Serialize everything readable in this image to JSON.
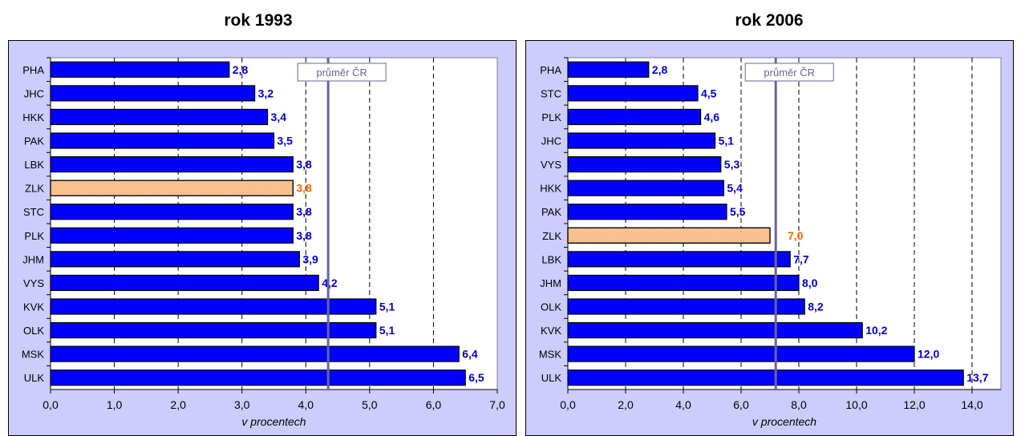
{
  "chart_data": [
    {
      "type": "bar",
      "orientation": "horizontal",
      "title": "rok 1993",
      "xlabel": "v procentech",
      "xlim": [
        0,
        7
      ],
      "xticks": [
        "0,0",
        "1,0",
        "2,0",
        "3,0",
        "4,0",
        "5,0",
        "6,0",
        "7,0"
      ],
      "categories": [
        "PHA",
        "JHC",
        "HKK",
        "PAK",
        "LBK",
        "ZLK",
        "STC",
        "PLK",
        "JHM",
        "VYS",
        "KVK",
        "OLK",
        "MSK",
        "ULK"
      ],
      "values": [
        2.8,
        3.2,
        3.4,
        3.5,
        3.8,
        3.8,
        3.8,
        3.8,
        3.9,
        4.2,
        5.1,
        5.1,
        6.4,
        6.5
      ],
      "value_labels": [
        "2,8",
        "3,2",
        "3,4",
        "3,5",
        "3,8",
        "3,8",
        "3,8",
        "3,8",
        "3,9",
        "4,2",
        "5,1",
        "5,1",
        "6,4",
        "6,5"
      ],
      "highlight": "ZLK",
      "reference_line": {
        "label": "průměr ČR",
        "value": 4.35
      },
      "grid": "vertical dashed",
      "colors": {
        "bar": "#0000ff",
        "highlight": "#ffcc99",
        "label": "#0000cc",
        "highlight_label": "#ff6600",
        "plot_bg": "#ffffff",
        "frame_bg": "#ccccff",
        "reference": "#666699"
      }
    },
    {
      "type": "bar",
      "orientation": "horizontal",
      "title": "rok 2006",
      "xlabel": "v procentech",
      "xlim": [
        0,
        15
      ],
      "xticks": [
        "0,0",
        "2,0",
        "4,0",
        "6,0",
        "8,0",
        "10,0",
        "12,0",
        "14,0"
      ],
      "categories": [
        "PHA",
        "STC",
        "PLK",
        "JHC",
        "VYS",
        "HKK",
        "PAK",
        "ZLK",
        "LBK",
        "JHM",
        "OLK",
        "KVK",
        "MSK",
        "ULK"
      ],
      "values": [
        2.8,
        4.5,
        4.6,
        5.1,
        5.3,
        5.4,
        5.5,
        7.0,
        7.7,
        8.0,
        8.2,
        10.2,
        12.0,
        13.7
      ],
      "value_labels": [
        "2,8",
        "4,5",
        "4,6",
        "5,1",
        "5,3",
        "5,4",
        "5,5",
        "7,0",
        "7,7",
        "8,0",
        "8,2",
        "10,2",
        "12,0",
        "13,7"
      ],
      "highlight": "ZLK",
      "reference_line": {
        "label": "průměr ČR",
        "value": 7.2
      },
      "grid": "vertical dashed",
      "colors": {
        "bar": "#0000ff",
        "highlight": "#ffcc99",
        "label": "#0000cc",
        "highlight_label": "#ff6600",
        "plot_bg": "#ffffff",
        "frame_bg": "#ccccff",
        "reference": "#666699"
      }
    }
  ]
}
